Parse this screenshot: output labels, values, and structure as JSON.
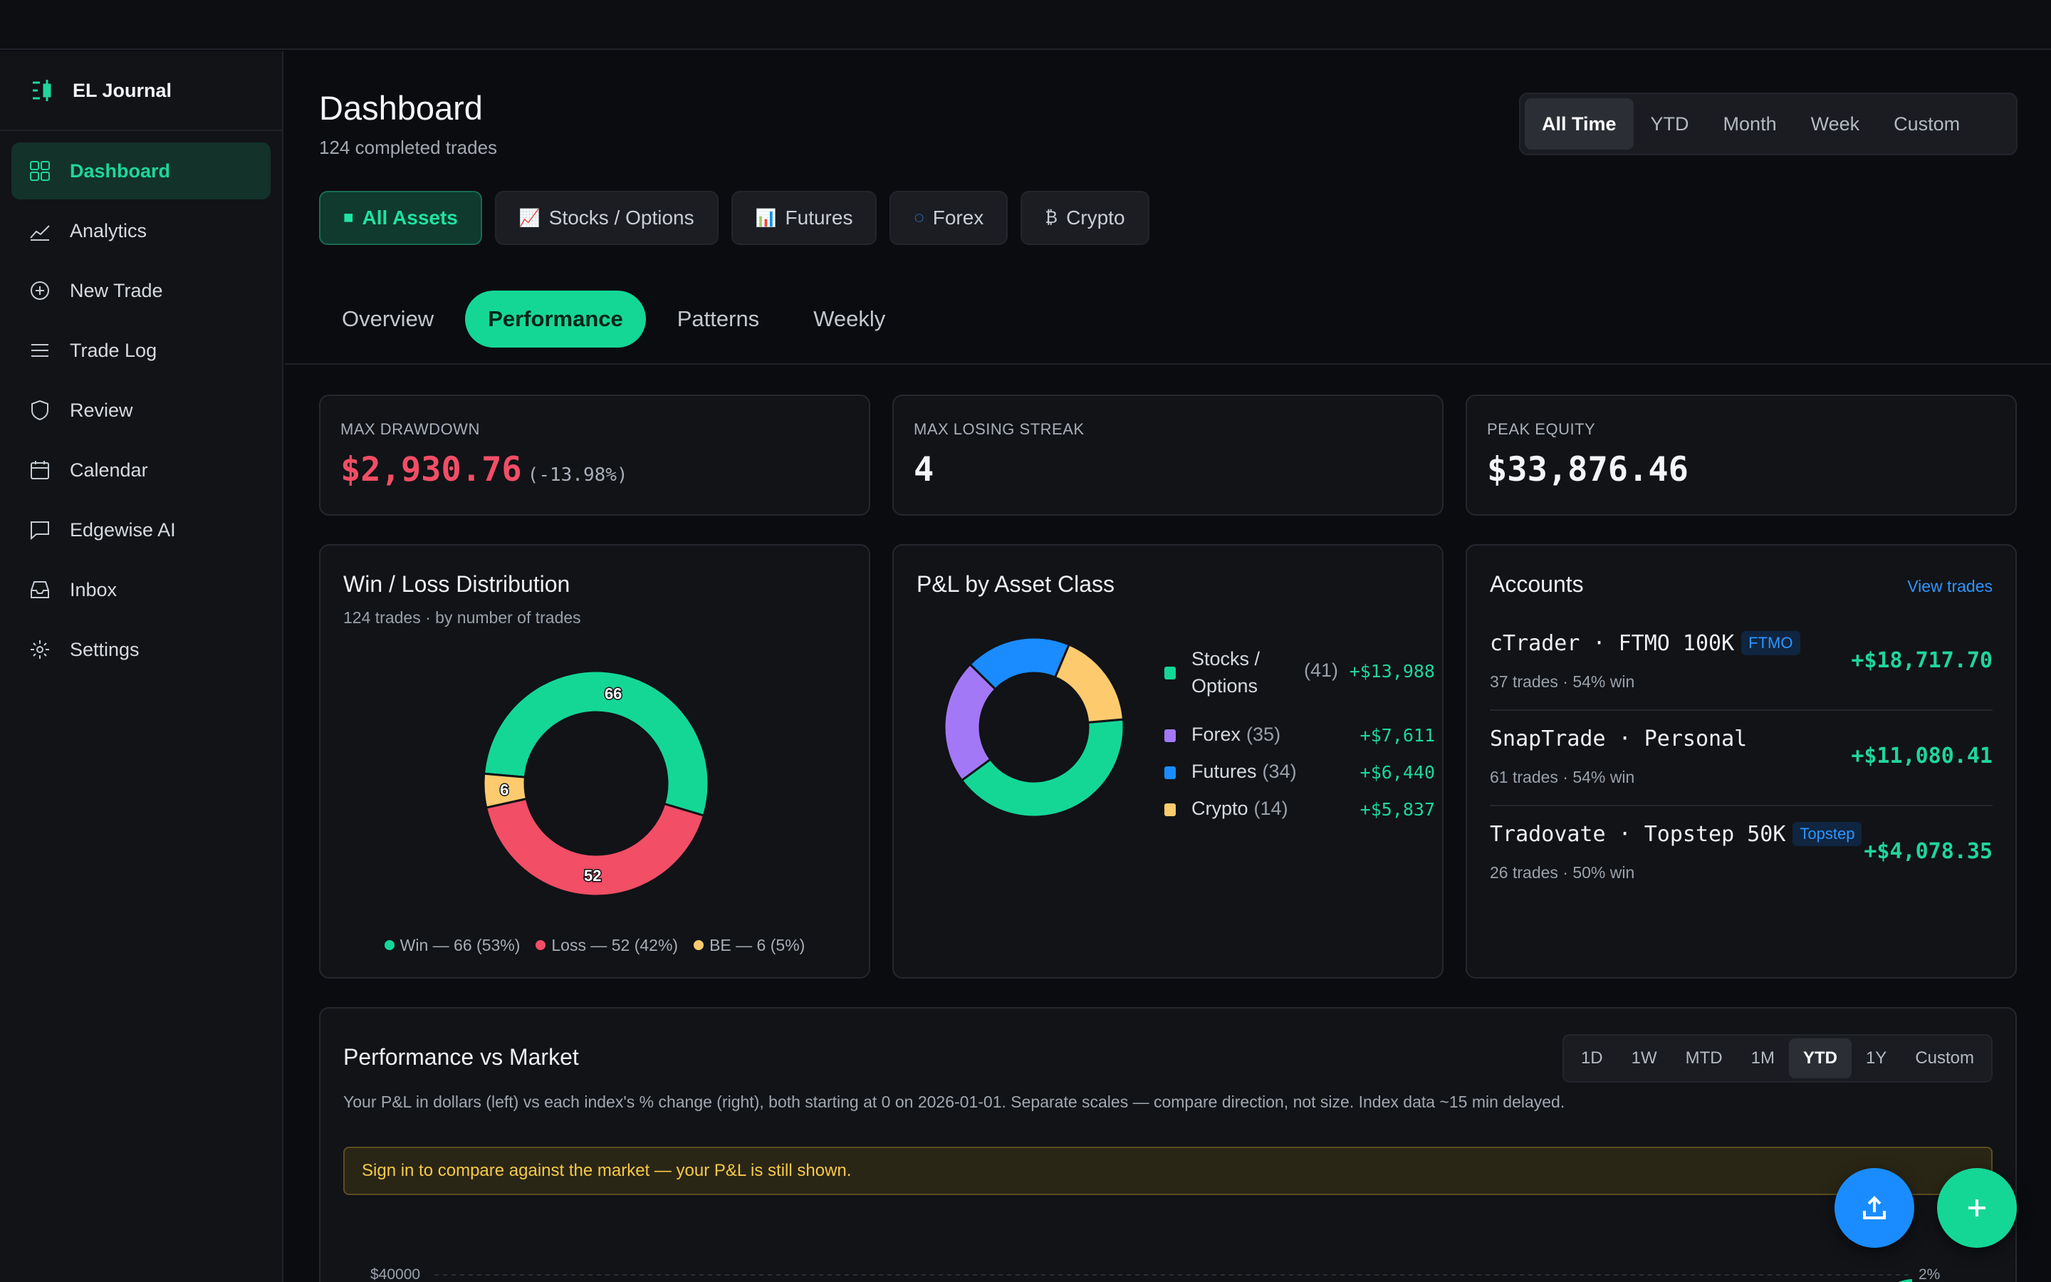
{
  "app": {
    "name": "EL Journal"
  },
  "sidebar": {
    "items": [
      {
        "label": "Dashboard",
        "icon": "dashboard-grid-icon",
        "active": true
      },
      {
        "label": "Analytics",
        "icon": "line-chart-icon"
      },
      {
        "label": "New Trade",
        "icon": "plus-circle-icon"
      },
      {
        "label": "Trade Log",
        "icon": "list-icon"
      },
      {
        "label": "Review",
        "icon": "shield-icon"
      },
      {
        "label": "Calendar",
        "icon": "calendar-icon"
      },
      {
        "label": "Edgewise AI",
        "icon": "chat-bubble-icon"
      },
      {
        "label": "Inbox",
        "icon": "inbox-icon"
      },
      {
        "label": "Settings",
        "icon": "gear-icon"
      }
    ]
  },
  "header": {
    "title": "Dashboard",
    "subtitle": "124 completed trades"
  },
  "time_range": {
    "options": [
      "All Time",
      "YTD",
      "Month",
      "Week",
      "Custom"
    ],
    "selected": "All Time"
  },
  "asset_filters": [
    {
      "label": "All Assets",
      "glyph": "■",
      "active": true
    },
    {
      "label": "Stocks / Options",
      "glyph": "📈"
    },
    {
      "label": "Futures",
      "glyph": "📊"
    },
    {
      "label": "Forex",
      "glyph": "◌"
    },
    {
      "label": "Crypto",
      "glyph": "₿"
    }
  ],
  "tabs": {
    "items": [
      "Overview",
      "Performance",
      "Patterns",
      "Weekly"
    ],
    "selected": "Performance"
  },
  "stats": {
    "max_drawdown": {
      "label": "MAX DRAWDOWN",
      "value": "$2,930.76",
      "pct": "(-13.98%)"
    },
    "max_losing_streak": {
      "label": "MAX LOSING STREAK",
      "value": "4"
    },
    "peak_equity": {
      "label": "PEAK EQUITY",
      "value": "$33,876.46"
    }
  },
  "win_loss": {
    "title": "Win / Loss Distribution",
    "subtitle": "124 trades · by number of trades",
    "legend": [
      "Win — 66 (53%)",
      "Loss — 52 (42%)",
      "BE — 6 (5%)"
    ]
  },
  "pl_asset": {
    "title": "P&L by Asset Class"
  },
  "accounts": {
    "title": "Accounts",
    "view_trades": "View trades",
    "items": [
      {
        "name": "cTrader · FTMO 100K",
        "badge": "FTMO",
        "sub": "37 trades · 54% win",
        "pnl": "+$18,717.70"
      },
      {
        "name": "SnapTrade · Personal",
        "badge": "",
        "sub": "61 trades · 54% win",
        "pnl": "+$11,080.41"
      },
      {
        "name": "Tradovate · Topstep 50K",
        "badge": "Topstep",
        "sub": "26 trades · 50% win",
        "pnl": "+$4,078.35"
      }
    ]
  },
  "performance_vs_market": {
    "title": "Performance vs Market",
    "ranges": [
      "1D",
      "1W",
      "MTD",
      "1M",
      "YTD",
      "1Y",
      "Custom"
    ],
    "selected": "YTD",
    "description": "Your P&L in dollars (left) vs each index's % change (right), both starting at 0 on 2026-01-01. Separate scales — compare direction, not size. Index data ~15 min delayed.",
    "alert": "Sign in to compare against the market — your P&L is still shown.",
    "y_left_top": "$40000",
    "y_right_top": "2%"
  },
  "colors": {
    "accent": "#14d796",
    "loss": "#f24e66",
    "breakeven": "#fdcb6e",
    "forex": "#a378f7",
    "futures": "#1a8cff",
    "crypto": "#fdcb6e",
    "link": "#2f95ff"
  },
  "chart_data": [
    {
      "type": "pie",
      "title": "Win / Loss Distribution",
      "categories": [
        "Win",
        "Loss",
        "BE"
      ],
      "values": [
        66,
        52,
        6
      ],
      "percent": [
        53,
        42,
        5
      ],
      "colors": [
        "#14d796",
        "#f24e66",
        "#fdcb6e"
      ]
    },
    {
      "type": "pie",
      "title": "P&L by Asset Class",
      "categories": [
        "Stocks / Options",
        "Forex",
        "Futures",
        "Crypto"
      ],
      "counts": [
        41,
        35,
        34,
        14
      ],
      "values": [
        13988,
        7611,
        6440,
        5837
      ],
      "value_labels": [
        "+$13,988",
        "+$7,611",
        "+$6,440",
        "+$5,837"
      ],
      "colors": [
        "#14d796",
        "#a378f7",
        "#1a8cff",
        "#fdcb6e"
      ]
    }
  ]
}
